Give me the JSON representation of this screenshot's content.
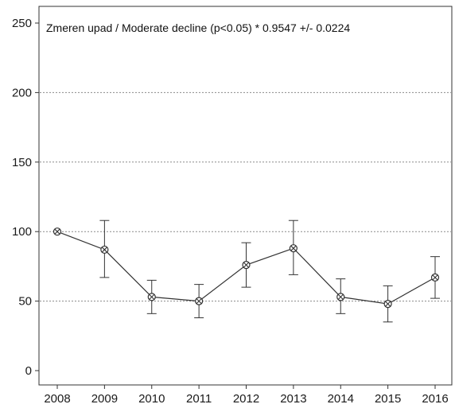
{
  "chart_data": {
    "type": "line",
    "annotation": "Zmeren upad / Moderate decline (p<0.05) *  0.9547 +/- 0.0224",
    "x": [
      "2008",
      "2009",
      "2010",
      "2011",
      "2012",
      "2013",
      "2014",
      "2015",
      "2016"
    ],
    "series": [
      {
        "values": [
          100,
          87,
          53,
          50,
          76,
          88,
          53,
          48,
          67
        ],
        "error_upper": [
          100,
          108,
          65,
          62,
          92,
          108,
          66,
          61,
          82
        ],
        "error_lower": [
          100,
          67,
          41,
          38,
          60,
          69,
          41,
          35,
          52
        ]
      }
    ],
    "yticks": [
      "0",
      "50",
      "100",
      "150",
      "200",
      "250"
    ],
    "ylim": [
      0,
      250
    ],
    "grid": "horizontal dotted lines at 50, 100, 150, 200",
    "marker": "circle-x",
    "colors": {
      "line": "#333333",
      "grid": "#8a8a8a",
      "frame": "#333333"
    }
  }
}
